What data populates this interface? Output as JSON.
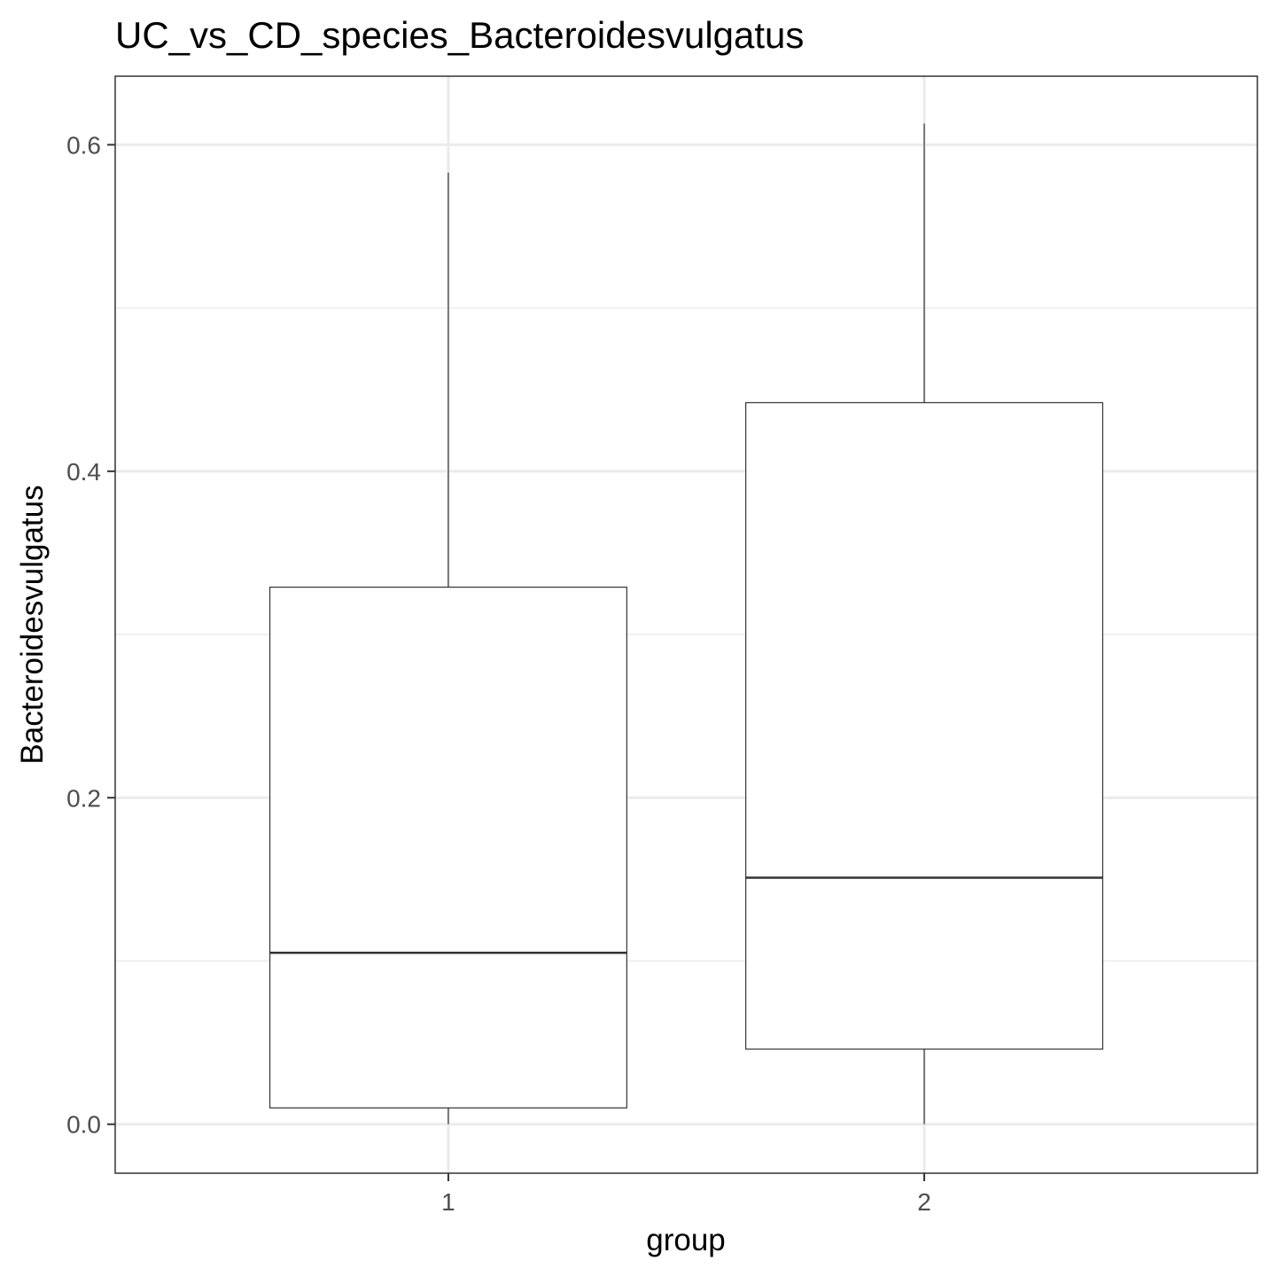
{
  "chart_data": {
    "type": "boxplot",
    "title": "UC_vs_CD_species_Bacteroidesvulgatus",
    "xlabel": "group",
    "ylabel": "Bacteroidesvulgatus",
    "categories": [
      "1",
      "2"
    ],
    "ylim": [
      -0.03,
      0.642
    ],
    "y_ticks": [
      0.0,
      0.2,
      0.4,
      0.6
    ],
    "y_tick_labels": [
      "0.0",
      "0.2",
      "0.4",
      "0.6"
    ],
    "y_minor_ticks": [
      0.1,
      0.3,
      0.5
    ],
    "grid": true,
    "boxes": [
      {
        "group": "1",
        "whisker_low": 0.0,
        "q1": 0.01,
        "median": 0.105,
        "q3": 0.329,
        "whisker_high": 0.583
      },
      {
        "group": "2",
        "whisker_low": 0.0,
        "q1": 0.046,
        "median": 0.151,
        "q3": 0.442,
        "whisker_high": 0.613
      }
    ]
  }
}
